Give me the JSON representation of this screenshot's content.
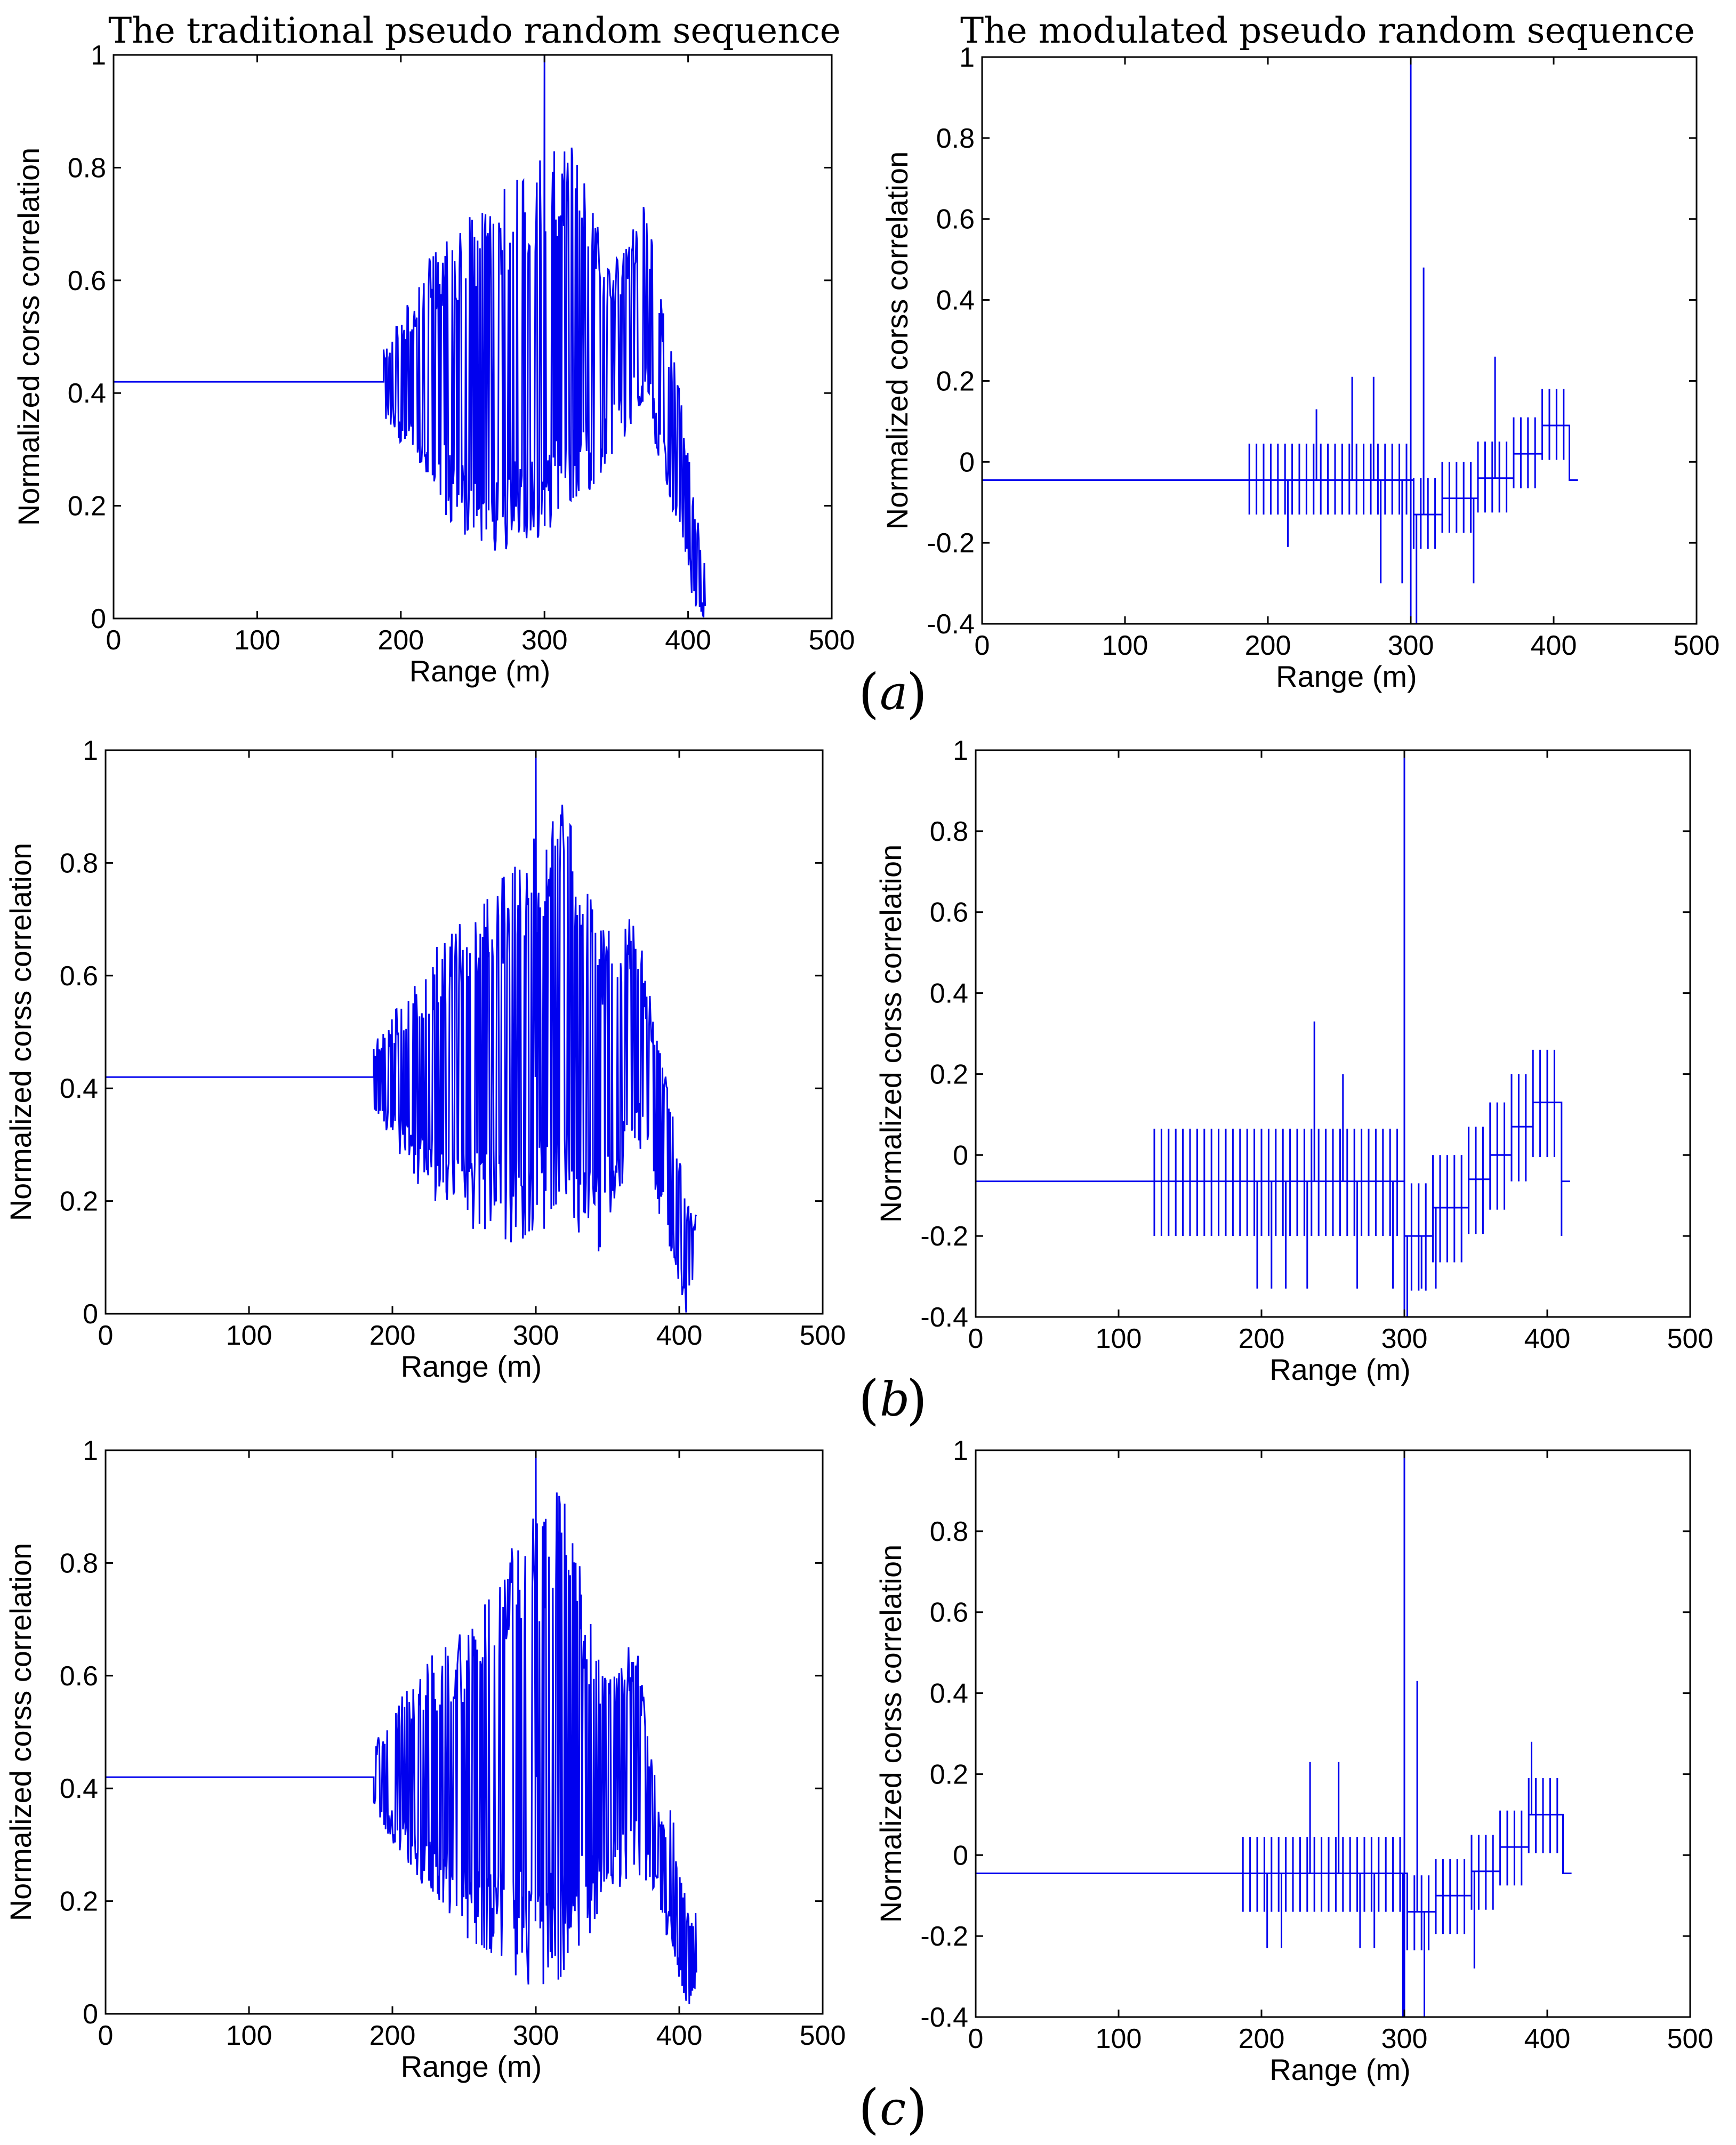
{
  "column_titles": {
    "left": "The traditional pseudo random sequence",
    "right": "The modulated pseudo random sequence"
  },
  "panel_labels": [
    "a",
    "b",
    "c"
  ],
  "colors": {
    "signal": "#0000ee",
    "axes": "#000000",
    "background": "#ffffff"
  },
  "chart_data": [
    {
      "id": "a-left",
      "type": "line",
      "series_style": "dense-noisy",
      "xlabel": "Range (m)",
      "ylabel": "Normalized corss correlation",
      "xlim": [
        0,
        500
      ],
      "ylim": [
        0,
        1
      ],
      "xticks": [
        0,
        100,
        200,
        300,
        400,
        500
      ],
      "yticks": [
        0,
        0.2,
        0.4,
        0.6,
        0.8,
        1
      ],
      "ytick_labels": [
        "0",
        "0.2",
        "0.4",
        "0.6",
        "0.8",
        "1"
      ],
      "baseline": 0.42,
      "onset": 188,
      "end": 412,
      "peak": {
        "x": 300,
        "y": 1
      },
      "envelope": [
        [
          188,
          0.36,
          0.48
        ],
        [
          220,
          0.22,
          0.65
        ],
        [
          250,
          0.12,
          0.72
        ],
        [
          290,
          0.12,
          0.8
        ],
        [
          320,
          0.18,
          0.86
        ],
        [
          345,
          0.28,
          0.62
        ],
        [
          370,
          0.38,
          0.74
        ],
        [
          385,
          0.22,
          0.52
        ],
        [
          395,
          0.15,
          0.4
        ],
        [
          405,
          0.0,
          0.2
        ],
        [
          412,
          0.0,
          0.1
        ]
      ]
    },
    {
      "id": "a-right",
      "type": "line",
      "series_style": "modulated-spikes",
      "xlabel": "Range (m)",
      "ylabel": "Normalized corss correlation",
      "xlim": [
        0,
        500
      ],
      "ylim": [
        -0.4,
        1
      ],
      "xticks": [
        0,
        100,
        200,
        300,
        400,
        500
      ],
      "yticks": [
        -0.4,
        -0.2,
        0,
        0.2,
        0.4,
        0.6,
        0.8,
        1
      ],
      "ytick_labels": [
        "-0.4",
        "-0.2",
        "0",
        "0.2",
        "0.4",
        "0.6",
        "0.8",
        "1"
      ],
      "baseline": -0.045,
      "onset": 187,
      "end": 411,
      "peak": {
        "x": 300,
        "y": 1
      },
      "spike_high": 0.045,
      "spike_low": -0.13,
      "outliers": [
        [
          208,
          -0.21
        ],
        [
          228,
          0.13
        ],
        [
          255,
          0.21
        ],
        [
          268,
          0.21
        ],
        [
          275,
          -0.3
        ],
        [
          290,
          -0.3
        ],
        [
          300,
          -0.4
        ],
        [
          305,
          0.48
        ],
        [
          340,
          -0.3
        ],
        [
          355,
          0.26
        ]
      ],
      "steps": [
        [
          300,
          -0.13
        ],
        [
          320,
          -0.09
        ],
        [
          345,
          -0.04
        ],
        [
          370,
          0.02
        ],
        [
          390,
          0.09
        ],
        [
          409,
          0.09
        ],
        [
          411,
          -0.045
        ]
      ]
    },
    {
      "id": "b-left",
      "type": "line",
      "series_style": "dense-noisy",
      "xlabel": "Range (m)",
      "ylabel": "Normalized corss correlation",
      "xlim": [
        0,
        500
      ],
      "ylim": [
        0,
        1
      ],
      "xticks": [
        0,
        100,
        200,
        300,
        400,
        500
      ],
      "yticks": [
        0,
        0.2,
        0.4,
        0.6,
        0.8,
        1
      ],
      "ytick_labels": [
        "0",
        "0.2",
        "0.4",
        "0.6",
        "0.8",
        "1"
      ],
      "baseline": 0.42,
      "onset": 187,
      "end": 412,
      "peak": {
        "x": 300,
        "y": 1
      },
      "envelope": [
        [
          187,
          0.36,
          0.48
        ],
        [
          220,
          0.22,
          0.62
        ],
        [
          255,
          0.15,
          0.72
        ],
        [
          290,
          0.12,
          0.82
        ],
        [
          320,
          0.15,
          0.92
        ],
        [
          345,
          0.1,
          0.68
        ],
        [
          370,
          0.3,
          0.72
        ],
        [
          385,
          0.18,
          0.48
        ],
        [
          395,
          0.1,
          0.38
        ],
        [
          405,
          0.0,
          0.2
        ],
        [
          412,
          0.05,
          0.18
        ]
      ]
    },
    {
      "id": "b-right",
      "type": "line",
      "series_style": "modulated-spikes",
      "xlabel": "Range (m)",
      "ylabel": "Normalized corss correlation",
      "xlim": [
        0,
        500
      ],
      "ylim": [
        -0.4,
        1
      ],
      "xticks": [
        0,
        100,
        200,
        300,
        400,
        500
      ],
      "yticks": [
        -0.4,
        -0.2,
        0,
        0.2,
        0.4,
        0.6,
        0.8,
        1
      ],
      "ytick_labels": [
        "-0.4",
        "-0.2",
        "0",
        "0.2",
        "0.4",
        "0.6",
        "0.8",
        "1"
      ],
      "baseline": -0.065,
      "onset": 125,
      "end": 410,
      "peak": {
        "x": 300,
        "y": 1
      },
      "spike_high": 0.065,
      "spike_low": -0.2,
      "outliers": [
        [
          195,
          -0.33
        ],
        [
          205,
          -0.33
        ],
        [
          215,
          -0.33
        ],
        [
          230,
          -0.33
        ],
        [
          235,
          0.33
        ],
        [
          255,
          0.2
        ],
        [
          265,
          -0.33
        ],
        [
          290,
          -0.33
        ],
        [
          298,
          -0.4
        ],
        [
          310,
          -0.33
        ],
        [
          318,
          -0.33
        ]
      ],
      "steps": [
        [
          300,
          -0.2
        ],
        [
          320,
          -0.13
        ],
        [
          345,
          -0.06
        ],
        [
          360,
          0.0
        ],
        [
          375,
          0.07
        ],
        [
          390,
          0.13
        ],
        [
          407,
          0.13
        ],
        [
          410,
          -0.065
        ]
      ]
    },
    {
      "id": "c-left",
      "type": "line",
      "series_style": "dense-noisy",
      "xlabel": "Range (m)",
      "ylabel": "Normalized corss correlation",
      "xlim": [
        0,
        500
      ],
      "ylim": [
        0,
        1
      ],
      "xticks": [
        0,
        100,
        200,
        300,
        400,
        500
      ],
      "yticks": [
        0,
        0.2,
        0.4,
        0.6,
        0.8,
        1
      ],
      "ytick_labels": [
        "0",
        "0.2",
        "0.4",
        "0.6",
        "0.8",
        "1"
      ],
      "baseline": 0.42,
      "onset": 187,
      "end": 412,
      "peak": {
        "x": 300,
        "y": 1
      },
      "envelope": [
        [
          187,
          0.36,
          0.48
        ],
        [
          220,
          0.22,
          0.62
        ],
        [
          255,
          0.12,
          0.7
        ],
        [
          290,
          0.05,
          0.86
        ],
        [
          320,
          0.05,
          0.94
        ],
        [
          345,
          0.18,
          0.62
        ],
        [
          370,
          0.25,
          0.68
        ],
        [
          385,
          0.2,
          0.38
        ],
        [
          395,
          0.1,
          0.36
        ],
        [
          405,
          0.0,
          0.2
        ],
        [
          412,
          0.05,
          0.18
        ]
      ]
    },
    {
      "id": "c-right",
      "type": "line",
      "series_style": "modulated-spikes",
      "xlabel": "Range (m)",
      "ylabel": "Normalized corss correlation",
      "xlim": [
        0,
        500
      ],
      "ylim": [
        -0.4,
        1
      ],
      "xticks": [
        0,
        100,
        200,
        300,
        400,
        500
      ],
      "yticks": [
        -0.4,
        -0.2,
        0,
        0.2,
        0.4,
        0.6,
        0.8,
        1
      ],
      "ytick_labels": [
        "-0.4",
        "-0.2",
        "0",
        "0.2",
        "0.4",
        "0.6",
        "0.8",
        "1"
      ],
      "baseline": -0.045,
      "onset": 187,
      "end": 411,
      "peak": {
        "x": 300,
        "y": 1
      },
      "spike_high": 0.045,
      "spike_low": -0.14,
      "outliers": [
        [
          200,
          -0.23
        ],
        [
          210,
          -0.23
        ],
        [
          230,
          0.23
        ],
        [
          250,
          0.23
        ],
        [
          265,
          -0.23
        ],
        [
          275,
          -0.23
        ],
        [
          295,
          -0.4
        ],
        [
          303,
          0.43
        ],
        [
          308,
          -0.4
        ],
        [
          345,
          -0.28
        ],
        [
          385,
          0.28
        ]
      ],
      "steps": [
        [
          300,
          -0.14
        ],
        [
          320,
          -0.1
        ],
        [
          345,
          -0.04
        ],
        [
          365,
          0.02
        ],
        [
          385,
          0.1
        ],
        [
          409,
          0.1
        ],
        [
          411,
          -0.045
        ]
      ]
    }
  ]
}
